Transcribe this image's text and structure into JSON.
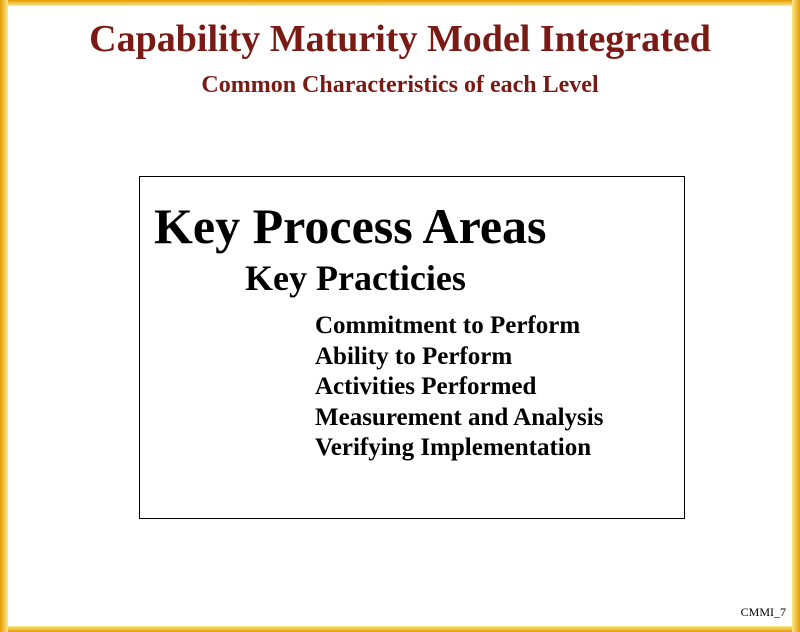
{
  "slide": {
    "title": "Capability Maturity Model Integrated",
    "subtitle": "Common Characteristics of each Level",
    "box": {
      "heading": "Key Process Areas",
      "subheading": "Key Practicies",
      "items": [
        "Commitment to Perform",
        "Ability to Perform",
        "Activities Performed",
        "Measurement and Analysis",
        "Verifying Implementation"
      ]
    },
    "slide_id": "CMMI_7"
  },
  "colors": {
    "title": "#7a1a14",
    "border_gold_dark": "#e39a00",
    "border_gold_light": "#fbe98a"
  }
}
